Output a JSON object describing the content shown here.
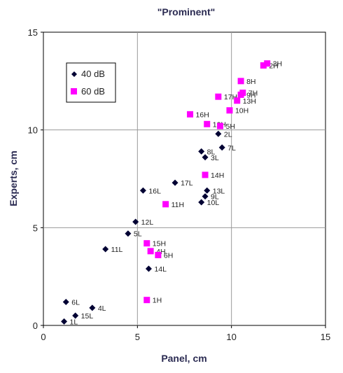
{
  "chart_data": {
    "type": "scatter",
    "title": "\"Prominent\"",
    "xlabel": "Panel, cm",
    "ylabel": "Experts, cm",
    "xlim": [
      0,
      15
    ],
    "ylim": [
      0,
      15
    ],
    "xticks": [
      "0",
      "5",
      "10",
      "15"
    ],
    "yticks": [
      "0",
      "5",
      "10",
      "15"
    ],
    "grid": true,
    "legend_position": "top-left",
    "series": [
      {
        "name": "40 dB",
        "marker": "diamond",
        "color": "#000033",
        "points": [
          {
            "label": "1L",
            "x": 1.1,
            "y": 0.2
          },
          {
            "label": "15L",
            "x": 1.7,
            "y": 0.5
          },
          {
            "label": "4L",
            "x": 2.6,
            "y": 0.9
          },
          {
            "label": "6L",
            "x": 1.2,
            "y": 1.2
          },
          {
            "label": "11L",
            "x": 3.3,
            "y": 3.9
          },
          {
            "label": "5L",
            "x": 4.5,
            "y": 4.7
          },
          {
            "label": "12L",
            "x": 4.9,
            "y": 5.3
          },
          {
            "label": "14L",
            "x": 5.6,
            "y": 2.9
          },
          {
            "label": "16L",
            "x": 5.3,
            "y": 6.9
          },
          {
            "label": "17L",
            "x": 7.0,
            "y": 7.3
          },
          {
            "label": "10L",
            "x": 8.4,
            "y": 6.3
          },
          {
            "label": "9L",
            "x": 8.6,
            "y": 6.6
          },
          {
            "label": "13L",
            "x": 8.7,
            "y": 6.9
          },
          {
            "label": "8L",
            "x": 8.4,
            "y": 8.9
          },
          {
            "label": "3L",
            "x": 8.6,
            "y": 8.6
          },
          {
            "label": "7L",
            "x": 9.5,
            "y": 9.1
          },
          {
            "label": "2L",
            "x": 9.3,
            "y": 9.8
          }
        ]
      },
      {
        "name": "60 dB",
        "marker": "square",
        "color": "#ff00ff",
        "points": [
          {
            "label": "1H",
            "x": 5.5,
            "y": 1.3
          },
          {
            "label": "15H",
            "x": 5.5,
            "y": 4.2
          },
          {
            "label": "4H",
            "x": 5.7,
            "y": 3.8
          },
          {
            "label": "6H",
            "x": 6.1,
            "y": 3.6
          },
          {
            "label": "11H",
            "x": 6.5,
            "y": 6.2
          },
          {
            "label": "14H",
            "x": 8.6,
            "y": 7.7
          },
          {
            "label": "16H",
            "x": 7.8,
            "y": 10.8
          },
          {
            "label": "12H",
            "x": 8.7,
            "y": 10.3
          },
          {
            "label": "5H",
            "x": 9.4,
            "y": 10.2
          },
          {
            "label": "10H",
            "x": 9.9,
            "y": 11.0
          },
          {
            "label": "17H",
            "x": 9.3,
            "y": 11.7
          },
          {
            "label": "13H",
            "x": 10.3,
            "y": 11.5
          },
          {
            "label": "9H",
            "x": 10.5,
            "y": 11.8
          },
          {
            "label": "7H",
            "x": 10.6,
            "y": 11.9
          },
          {
            "label": "8H",
            "x": 10.5,
            "y": 12.5
          },
          {
            "label": "2H",
            "x": 11.7,
            "y": 13.3
          },
          {
            "label": "3H",
            "x": 11.9,
            "y": 13.4
          }
        ]
      }
    ]
  }
}
